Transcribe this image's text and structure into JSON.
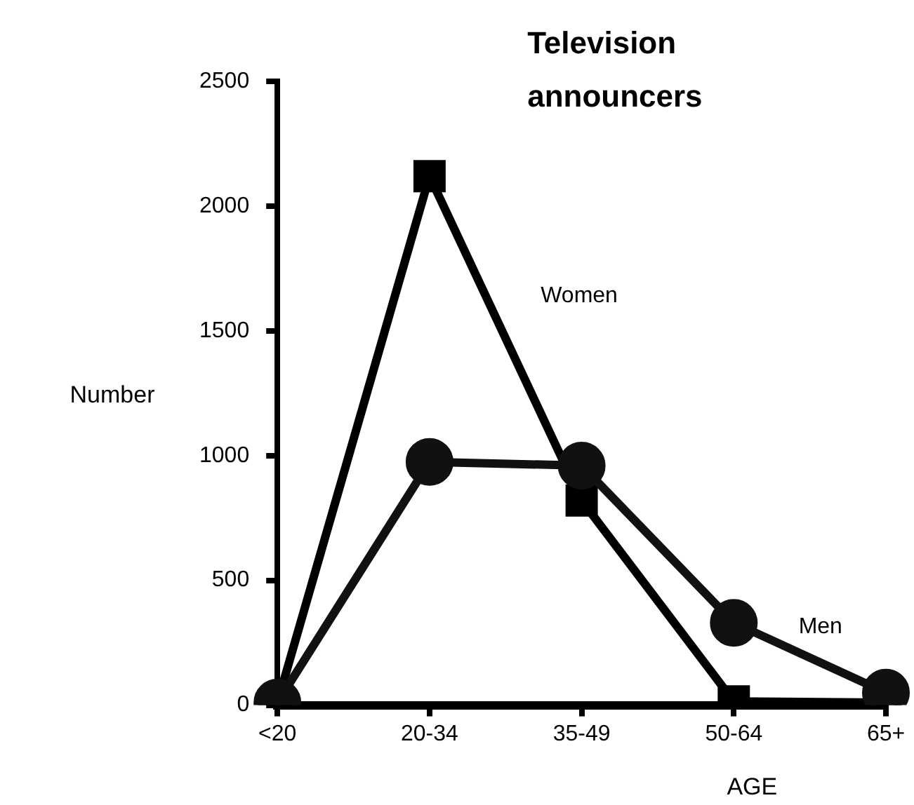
{
  "chart_data": {
    "type": "line",
    "title": "Television announcers",
    "xlabel": "AGE",
    "ylabel": "Number",
    "categories": [
      "<20",
      "20-34",
      "35-49",
      "50-64",
      "65+"
    ],
    "series": [
      {
        "name": "Women",
        "color": "#000000",
        "marker": "square",
        "values": [
          10,
          2120,
          820,
          15,
          10
        ]
      },
      {
        "name": "Men",
        "color": "#111111",
        "marker": "circle",
        "values": [
          10,
          975,
          960,
          330,
          50
        ]
      }
    ],
    "ylim": [
      0,
      2500
    ],
    "yticks": [
      0,
      500,
      1000,
      1500,
      2000,
      2500
    ],
    "grid": false,
    "legend": false,
    "line_style": "solid"
  }
}
